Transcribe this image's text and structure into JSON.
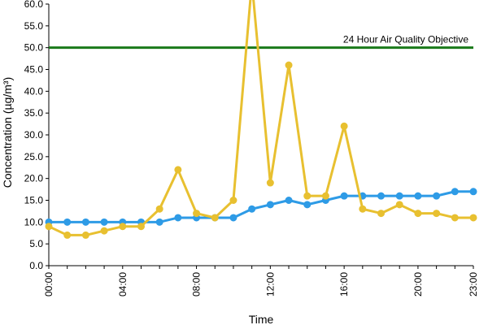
{
  "chart_data": {
    "type": "line",
    "title": "",
    "xlabel": "Time",
    "ylabel": "Concentration (µg/m³)",
    "ylim": [
      0,
      60
    ],
    "yticks": [
      "0.0",
      "5.0",
      "10.0",
      "15.0",
      "20.0",
      "25.0",
      "30.0",
      "35.0",
      "40.0",
      "45.0",
      "50.0",
      "55.0",
      "60.0"
    ],
    "xticks": [
      "00:00",
      "04:00",
      "08:00",
      "12:00",
      "16:00",
      "20:00",
      "23:00"
    ],
    "x": [
      0,
      1,
      2,
      3,
      4,
      5,
      6,
      7,
      8,
      9,
      10,
      11,
      12,
      13,
      14,
      15,
      16,
      17,
      18,
      19,
      20,
      21,
      22,
      23
    ],
    "grid": false,
    "legend": "none",
    "series": [
      {
        "color": "#2e9be6",
        "values": [
          10,
          10,
          10,
          10,
          10,
          10,
          10,
          11,
          11,
          11,
          11,
          13,
          14,
          15,
          14,
          15,
          16,
          16,
          16,
          16,
          16,
          16,
          17,
          17
        ]
      },
      {
        "color": "#e8c030",
        "values": [
          9,
          7,
          7,
          8,
          9,
          9,
          13,
          22,
          12,
          11,
          15,
          65,
          19,
          46,
          16,
          16,
          32,
          13,
          12,
          14,
          12,
          12,
          11,
          11
        ]
      }
    ],
    "annotations": [
      {
        "type": "hline",
        "y": 50,
        "color": "#1a7a1a",
        "label": "24 Hour Air Quality Objective"
      }
    ]
  }
}
